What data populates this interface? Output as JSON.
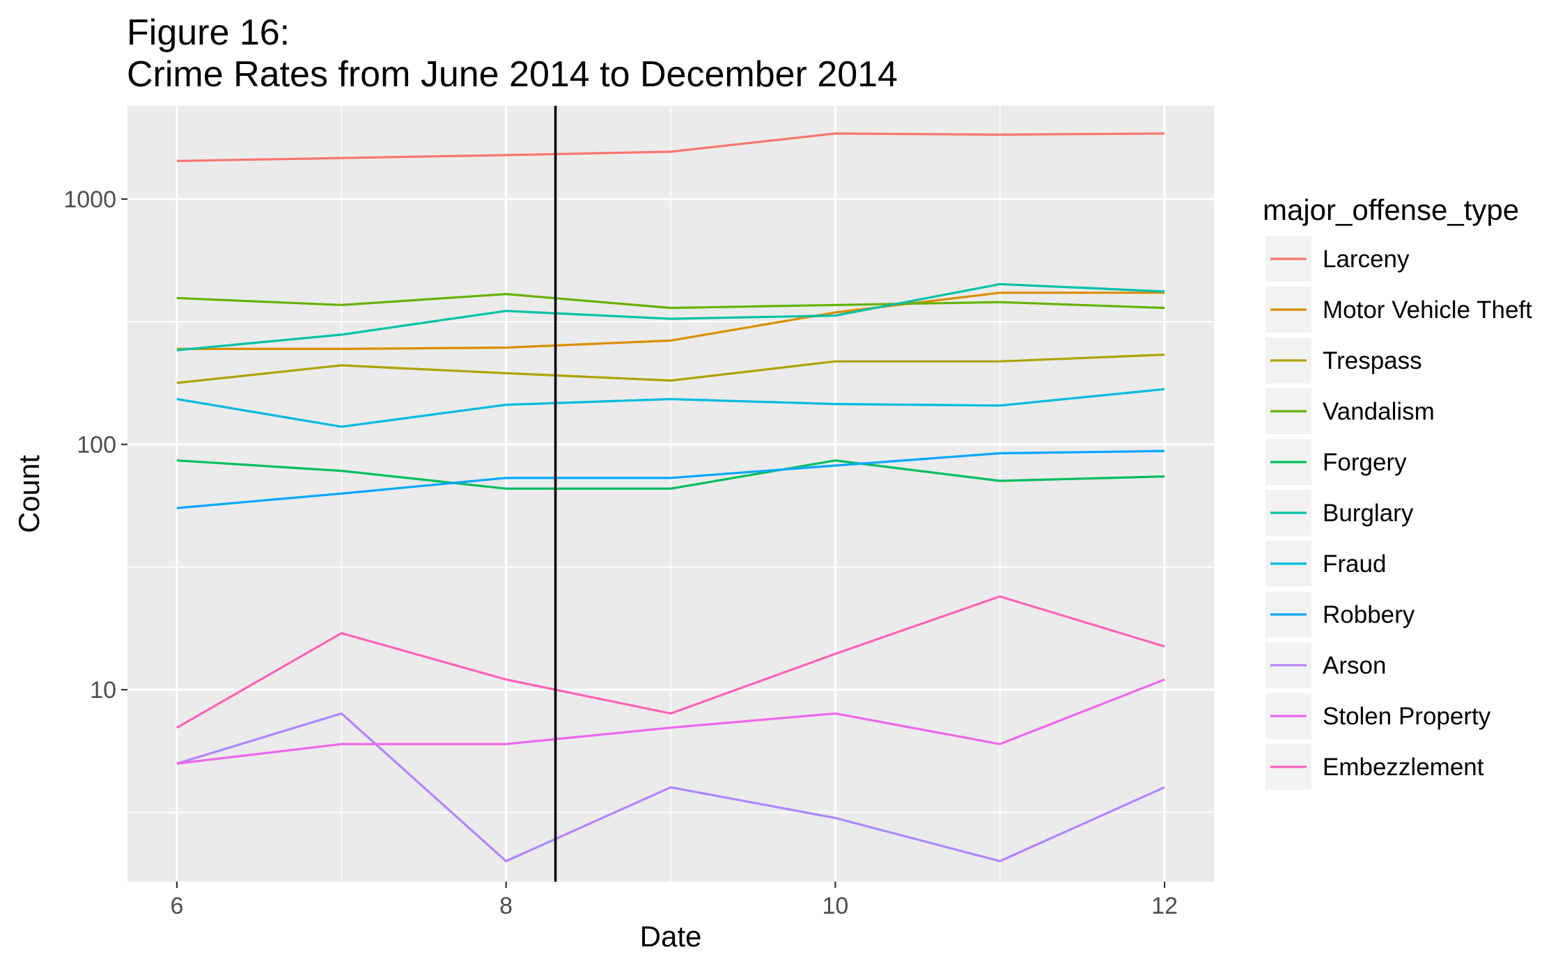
{
  "chart_data": {
    "type": "line",
    "title_line1": "Figure 16:",
    "title_line2": "Crime Rates from June 2014 to December 2014",
    "xlabel": "Date",
    "ylabel": "Count",
    "x": [
      6,
      7,
      8,
      9,
      10,
      11,
      12
    ],
    "x_ticks": [
      6,
      8,
      10,
      12
    ],
    "x_tick_labels": [
      "6",
      "8",
      "10",
      "12"
    ],
    "xlim": [
      5.7,
      12.3
    ],
    "y_scale": "log10",
    "y_ticks": [
      10,
      100,
      1000
    ],
    "y_tick_labels": [
      "10",
      "100",
      "1000"
    ],
    "ylim": [
      1.65,
      2400
    ],
    "grid": true,
    "legend_title": "major_offense_type",
    "legend_position": "right",
    "vline": {
      "x": 8.3,
      "color": "#000000"
    },
    "series": [
      {
        "name": "Larceny",
        "color": "#F8766D",
        "values": [
          1430,
          1470,
          1510,
          1560,
          1850,
          1830,
          1850
        ]
      },
      {
        "name": "Motor Vehicle Theft",
        "color": "#DB8E00",
        "values": [
          245,
          245,
          248,
          265,
          345,
          415,
          415
        ]
      },
      {
        "name": "Trespass",
        "color": "#AEA200",
        "values": [
          178,
          210,
          195,
          182,
          218,
          218,
          232
        ]
      },
      {
        "name": "Vandalism",
        "color": "#64B200",
        "values": [
          395,
          370,
          410,
          360,
          370,
          380,
          360
        ]
      },
      {
        "name": "Forgery",
        "color": "#00BD5C",
        "values": [
          86,
          78,
          66,
          66,
          86,
          71,
          74
        ]
      },
      {
        "name": "Burglary",
        "color": "#00C1A7",
        "values": [
          242,
          280,
          350,
          325,
          335,
          450,
          420
        ]
      },
      {
        "name": "Fraud",
        "color": "#00BADE",
        "values": [
          153,
          118,
          145,
          153,
          146,
          144,
          168
        ]
      },
      {
        "name": "Robbery",
        "color": "#00A6FF",
        "values": [
          55,
          63,
          73,
          73,
          82,
          92,
          94
        ]
      },
      {
        "name": "Arson",
        "color": "#B385FF",
        "values": [
          5,
          8,
          2,
          4,
          3,
          2,
          4
        ]
      },
      {
        "name": "Stolen Property",
        "color": "#EF67EB",
        "values": [
          5,
          6,
          6,
          7,
          8,
          6,
          11
        ]
      },
      {
        "name": "Embezzlement",
        "color": "#FF63B6",
        "values": [
          7,
          17,
          11,
          8,
          14,
          24,
          15
        ]
      }
    ]
  }
}
